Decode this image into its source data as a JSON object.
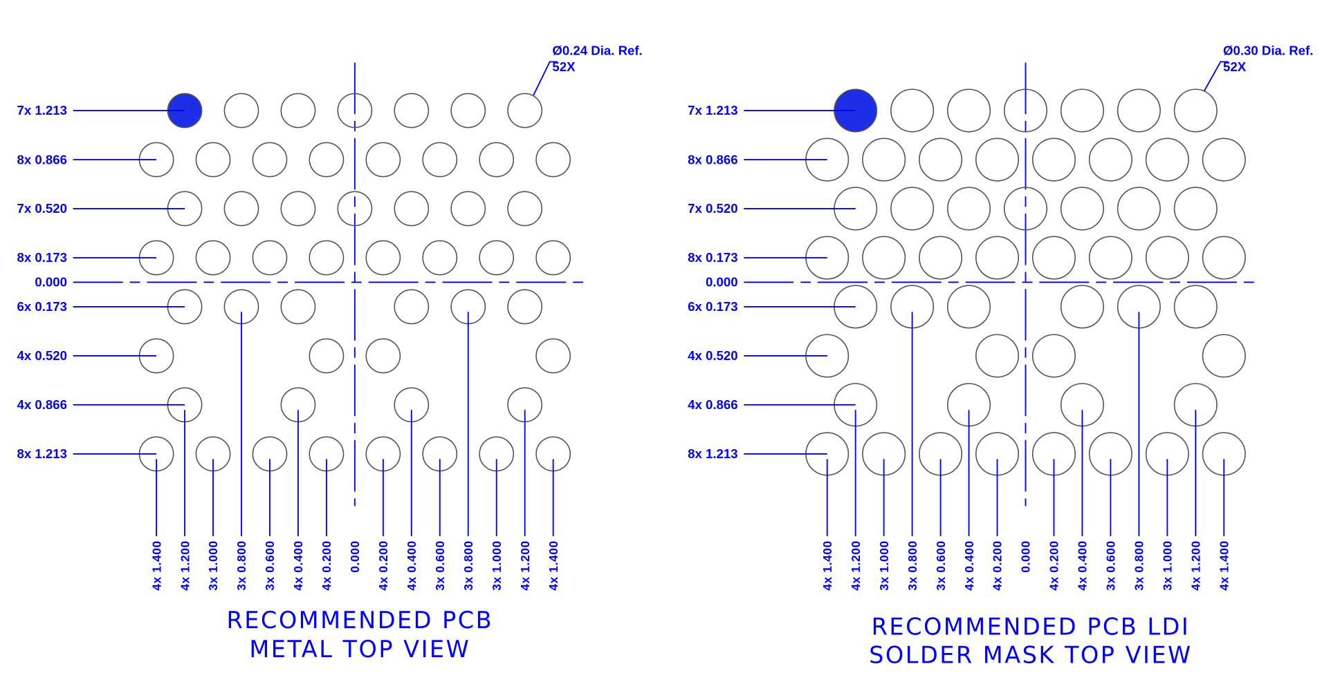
{
  "colors": {
    "dimension": "#0000ff",
    "pad_outline": "#555555",
    "pin1_fill": "#1e2ee6"
  },
  "pad_rows": [
    {
      "y": 1.213,
      "label": "7x 1.213",
      "x": [
        -1.2,
        -0.8,
        -0.4,
        0,
        0.4,
        0.8,
        1.2
      ]
    },
    {
      "y": 0.866,
      "label": "8x 0.866",
      "x": [
        -1.4,
        -1.0,
        -0.6,
        -0.2,
        0.2,
        0.6,
        1.0,
        1.4
      ]
    },
    {
      "y": 0.52,
      "label": "7x 0.520",
      "x": [
        -1.2,
        -0.8,
        -0.4,
        0,
        0.4,
        0.8,
        1.2
      ]
    },
    {
      "y": 0.173,
      "label": "8x 0.173",
      "x": [
        -1.4,
        -1.0,
        -0.6,
        -0.2,
        0.2,
        0.6,
        1.0,
        1.4
      ]
    },
    {
      "y": 0.0,
      "label": "0.000",
      "x": []
    },
    {
      "y": -0.173,
      "label": "6x 0.173",
      "x": [
        -1.2,
        -0.8,
        -0.4,
        0.4,
        0.8,
        1.2
      ]
    },
    {
      "y": -0.52,
      "label": "4x 0.520",
      "x": [
        -1.4,
        -0.2,
        0.2,
        1.4
      ]
    },
    {
      "y": -0.866,
      "label": "4x 0.866",
      "x": [
        -1.2,
        -0.4,
        0.4,
        1.2
      ]
    },
    {
      "y": -1.213,
      "label": "8x 1.213",
      "x": [
        -1.4,
        -1.0,
        -0.6,
        -0.2,
        0.2,
        0.6,
        1.0,
        1.4
      ]
    }
  ],
  "columns": [
    {
      "x": -1.4,
      "label": "4x 1.400",
      "from_row": -1.213
    },
    {
      "x": -1.2,
      "label": "4x 1.200",
      "from_row": -0.866
    },
    {
      "x": -1.0,
      "label": "3x 1.000",
      "from_row": -1.213
    },
    {
      "x": -0.8,
      "label": "3x 0.800",
      "from_row": -0.173
    },
    {
      "x": -0.6,
      "label": "3x 0.600",
      "from_row": -1.213
    },
    {
      "x": -0.4,
      "label": "4x 0.400",
      "from_row": -0.866
    },
    {
      "x": -0.2,
      "label": "4x 0.200",
      "from_row": -1.213
    },
    {
      "x": 0.0,
      "label": "0.000",
      "from_row": null
    },
    {
      "x": 0.2,
      "label": "4x 0.200",
      "from_row": -1.213
    },
    {
      "x": 0.4,
      "label": "4x 0.400",
      "from_row": -0.866
    },
    {
      "x": 0.6,
      "label": "3x 0.600",
      "from_row": -1.213
    },
    {
      "x": 0.8,
      "label": "3x 0.800",
      "from_row": -0.173
    },
    {
      "x": 1.0,
      "label": "3x 1.000",
      "from_row": -1.213
    },
    {
      "x": 1.2,
      "label": "4x 1.200",
      "from_row": -0.866
    },
    {
      "x": 1.4,
      "label": "4x 1.400",
      "from_row": -1.213
    }
  ],
  "pin1": {
    "x": -1.2,
    "y": 1.213
  },
  "views": [
    {
      "pad_diameter": 0.24,
      "callout_line1": "Ø0.24 Dia. Ref.",
      "callout_line2": "52X",
      "title_line1": "RECOMMENDED PCB",
      "title_line2": "METAL TOP VIEW"
    },
    {
      "pad_diameter": 0.3,
      "callout_line1": "Ø0.30 Dia. Ref.",
      "callout_line2": "52X",
      "title_line1": "RECOMMENDED PCB LDI",
      "title_line2": "SOLDER MASK TOP VIEW"
    }
  ]
}
